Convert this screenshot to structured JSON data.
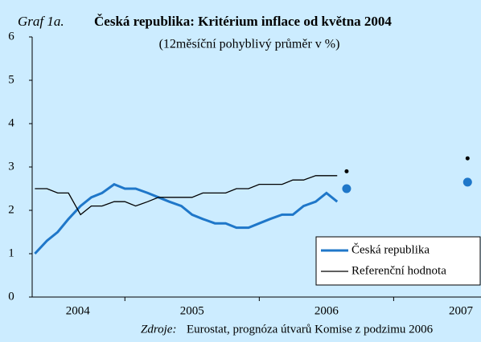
{
  "chart_data": {
    "type": "line",
    "title_prefix": "Graf 1a.",
    "title": "Česká republika: Kritérium inflace od května 2004",
    "subtitle": "(12měsíční pohyblivý průměr v %)",
    "source_prefix": "Zdroje:",
    "source": "Eurostat, prognóza útvarů Komise z podzimu 2006",
    "x": [
      2004.33,
      2004.42,
      2004.5,
      2004.58,
      2004.67,
      2004.75,
      2004.83,
      2004.92,
      2005,
      2005.08,
      2005.17,
      2005.25,
      2005.33,
      2005.42,
      2005.5,
      2005.58,
      2005.67,
      2005.75,
      2005.83,
      2005.92,
      2006,
      2006.08,
      2006.17,
      2006.25,
      2006.33,
      2006.42,
      2006.5,
      2006.58
    ],
    "series": [
      {
        "name": "Česká republika",
        "color": "#1f77c9",
        "width": 3,
        "values": [
          1.0,
          1.3,
          1.5,
          1.8,
          2.1,
          2.3,
          2.4,
          2.6,
          2.5,
          2.5,
          2.4,
          2.3,
          2.2,
          2.1,
          1.9,
          1.8,
          1.7,
          1.7,
          1.6,
          1.6,
          1.7,
          1.8,
          1.9,
          1.9,
          2.1,
          2.2,
          2.4,
          2.2
        ]
      },
      {
        "name": "Referenční hodnota",
        "color": "#000000",
        "width": 1.3,
        "values": [
          2.5,
          2.5,
          2.4,
          2.4,
          1.9,
          2.1,
          2.1,
          2.2,
          2.2,
          2.1,
          2.2,
          2.3,
          2.3,
          2.3,
          2.3,
          2.4,
          2.4,
          2.4,
          2.5,
          2.5,
          2.6,
          2.6,
          2.6,
          2.7,
          2.7,
          2.8,
          2.8,
          2.8
        ]
      }
    ],
    "forecast_points": [
      {
        "x": 2006.65,
        "y": 2.5,
        "color": "#1f77c9",
        "size": 5.5
      },
      {
        "x": 2007.55,
        "y": 2.65,
        "color": "#1f77c9",
        "size": 5.5
      },
      {
        "x": 2006.65,
        "y": 2.9,
        "color": "#000000",
        "size": 2.5
      },
      {
        "x": 2007.55,
        "y": 3.2,
        "color": "#000000",
        "size": 2.5
      }
    ],
    "xlim": [
      2004.31,
      2007.65
    ],
    "xticks": [
      {
        "value": 2004.65,
        "label": "2004"
      },
      {
        "value": 2005.5,
        "label": "2005"
      },
      {
        "value": 2006.5,
        "label": "2006"
      },
      {
        "value": 2007.5,
        "label": "2007"
      }
    ],
    "xtick_marks": [
      2005,
      2006,
      2007
    ],
    "ylim": [
      0,
      6
    ],
    "yticks": [
      0,
      1,
      2,
      3,
      4,
      5,
      6
    ],
    "legend": "lower right"
  }
}
